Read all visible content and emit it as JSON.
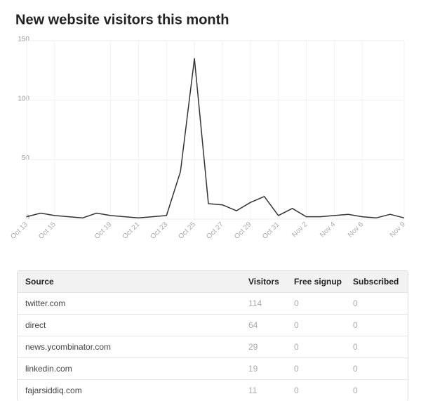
{
  "chart_data": {
    "type": "line",
    "title": "New website visitors this month",
    "categories": [
      "Oct 13",
      null,
      "Oct 15",
      null,
      null,
      null,
      "Oct 19",
      null,
      "Oct 21",
      null,
      "Oct 23",
      null,
      "Oct 25",
      null,
      "Oct 27",
      null,
      "Oct 29",
      null,
      "Oct 31",
      null,
      "Nov 2",
      null,
      "Nov 4",
      null,
      "Nov 6",
      null,
      null,
      "Nov 9"
    ],
    "values": [
      2,
      5,
      3,
      2,
      1,
      5,
      3,
      2,
      1,
      2,
      3,
      40,
      135,
      13,
      12,
      7,
      14,
      19,
      3,
      9,
      2,
      2,
      3,
      4,
      2,
      1,
      4,
      1
    ],
    "color": "#333333",
    "ylim": [
      0,
      150
    ],
    "yticks": [
      0,
      50,
      100,
      150
    ],
    "grid": true
  },
  "table": {
    "columns": [
      "Source",
      "Visitors",
      "Free signup",
      "Subscribed"
    ],
    "rows": [
      [
        "twitter.com",
        "114",
        "0",
        "0"
      ],
      [
        "direct",
        "64",
        "0",
        "0"
      ],
      [
        "news.ycombinator.com",
        "29",
        "0",
        "0"
      ],
      [
        "linkedin.com",
        "19",
        "0",
        "0"
      ],
      [
        "fajarsiddiq.com",
        "11",
        "0",
        "0"
      ]
    ]
  }
}
